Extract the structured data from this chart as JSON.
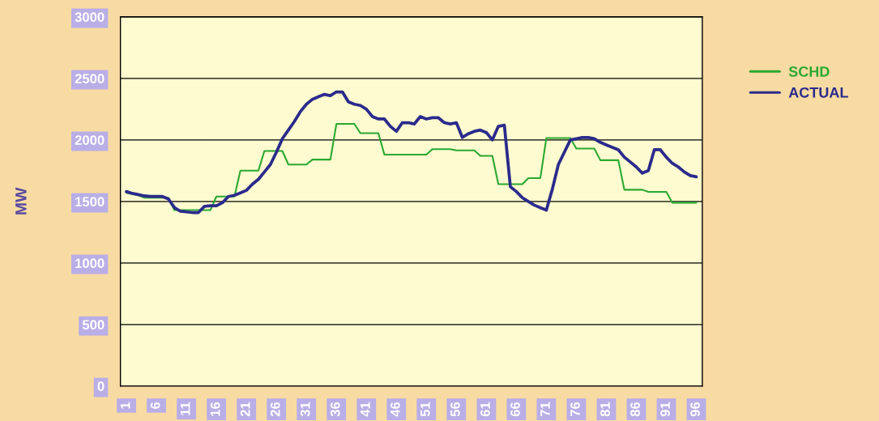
{
  "chart_data": {
    "type": "line",
    "ylabel": "MW",
    "categories": [
      "1",
      null,
      null,
      null,
      null,
      "6",
      null,
      null,
      null,
      null,
      "11",
      null,
      null,
      null,
      null,
      "16",
      null,
      null,
      null,
      null,
      "21",
      null,
      null,
      null,
      null,
      "26",
      null,
      null,
      null,
      null,
      "31",
      null,
      null,
      null,
      null,
      "36",
      null,
      null,
      null,
      null,
      "41",
      null,
      null,
      null,
      null,
      "46",
      null,
      null,
      null,
      null,
      "51",
      null,
      null,
      null,
      null,
      "56",
      null,
      null,
      null,
      null,
      "61",
      null,
      null,
      null,
      null,
      "66",
      null,
      null,
      null,
      null,
      "71",
      null,
      null,
      null,
      null,
      "76",
      null,
      null,
      null,
      null,
      "81",
      null,
      null,
      null,
      null,
      "86",
      null,
      null,
      null,
      null,
      "91",
      null,
      null,
      null,
      null,
      "96"
    ],
    "series": [
      {
        "name": "SCHD",
        "color": "#2aa830",
        "values": [
          1570,
          1560,
          1550,
          1530,
          1530,
          1530,
          1530,
          1530,
          1430,
          1430,
          1430,
          1430,
          1430,
          1430,
          1430,
          1540,
          1540,
          1540,
          1540,
          1750,
          1750,
          1750,
          1750,
          1910,
          1910,
          1910,
          1910,
          1800,
          1800,
          1800,
          1800,
          1840,
          1840,
          1840,
          1840,
          2130,
          2130,
          2130,
          2130,
          2055,
          2055,
          2055,
          2055,
          1880,
          1880,
          1880,
          1880,
          1880,
          1880,
          1880,
          1880,
          1925,
          1925,
          1925,
          1925,
          1915,
          1915,
          1915,
          1915,
          1870,
          1870,
          1870,
          1640,
          1640,
          1640,
          1640,
          1640,
          1690,
          1690,
          1690,
          2015,
          2015,
          2015,
          2015,
          2015,
          1930,
          1930,
          1930,
          1930,
          1835,
          1835,
          1835,
          1835,
          1595,
          1595,
          1595,
          1595,
          1578,
          1578,
          1578,
          1578,
          1490,
          1490,
          1490,
          1490,
          1490
        ]
      },
      {
        "name": "ACTUAL",
        "color": "#2b2a8c",
        "values": [
          1580,
          1565,
          1555,
          1545,
          1540,
          1540,
          1540,
          1520,
          1450,
          1420,
          1415,
          1410,
          1410,
          1460,
          1465,
          1465,
          1490,
          1540,
          1550,
          1570,
          1590,
          1640,
          1680,
          1740,
          1800,
          1900,
          2010,
          2080,
          2150,
          2230,
          2290,
          2330,
          2350,
          2370,
          2360,
          2390,
          2390,
          2310,
          2290,
          2280,
          2250,
          2190,
          2170,
          2170,
          2110,
          2070,
          2140,
          2140,
          2130,
          2190,
          2170,
          2180,
          2180,
          2140,
          2130,
          2140,
          2020,
          2050,
          2070,
          2080,
          2060,
          2000,
          2110,
          2120,
          1620,
          1580,
          1530,
          1500,
          1470,
          1450,
          1430,
          1600,
          1800,
          1900,
          2000,
          2010,
          2020,
          2020,
          2010,
          1980,
          1960,
          1940,
          1920,
          1860,
          1820,
          1780,
          1730,
          1750,
          1920,
          1920,
          1860,
          1810,
          1780,
          1740,
          1710,
          1700
        ]
      }
    ],
    "ylim": [
      0,
      3000
    ],
    "yticks": [
      0,
      500,
      1000,
      1500,
      2000,
      2500,
      3000
    ],
    "grid": "y",
    "legend": "right",
    "marker": "none",
    "line_style": "solid"
  }
}
